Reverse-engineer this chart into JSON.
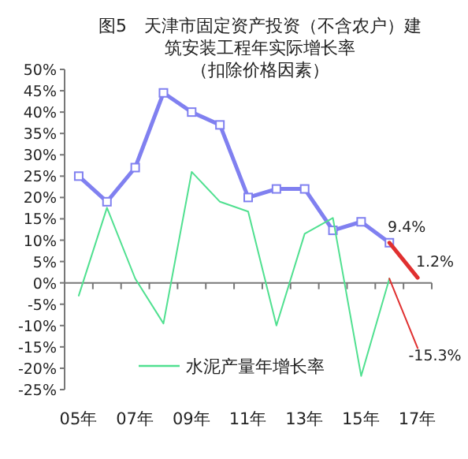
{
  "chart_data": {
    "type": "line",
    "title": "图5　天津市固定资产投资（不含农户）建筑安装工程年实际增长率",
    "subtitle": "（扣除价格因素）",
    "categories": [
      "05年",
      null,
      "07年",
      null,
      "09年",
      null,
      "11年",
      null,
      "13年",
      null,
      "15年",
      null,
      "17年"
    ],
    "ylim": [
      -25,
      50
    ],
    "yticks": [
      {
        "value": -25,
        "label": "-25%"
      },
      {
        "value": -20,
        "label": "-20%"
      },
      {
        "value": -15,
        "label": "-15%"
      },
      {
        "value": -10,
        "label": "-10%"
      },
      {
        "value": -5,
        "label": "-5%"
      },
      {
        "value": 0,
        "label": "0%"
      },
      {
        "value": 5,
        "label": "5%"
      },
      {
        "value": 10,
        "label": "10%"
      },
      {
        "value": 15,
        "label": "15%"
      },
      {
        "value": 20,
        "label": "20%"
      },
      {
        "value": 25,
        "label": "25%"
      },
      {
        "value": 30,
        "label": "30%"
      },
      {
        "value": 35,
        "label": "35%"
      },
      {
        "value": 40,
        "label": "40%"
      },
      {
        "value": 45,
        "label": "45%"
      },
      {
        "value": 50,
        "label": "50%"
      }
    ],
    "legend": "bottom",
    "series": [
      {
        "color": "#8080f0",
        "marker": "square",
        "values": [
          25,
          19,
          27,
          44.5,
          40,
          37,
          20,
          22,
          22,
          12.3,
          14.3,
          9.4,
          null
        ]
      },
      {
        "name": "水泥产量年增长率",
        "color": "#50e090",
        "marker": "none",
        "values": [
          -3,
          17.6,
          1,
          -9.5,
          26,
          19,
          16.7,
          -10,
          11.5,
          15.2,
          -21.8,
          1,
          null
        ]
      },
      {
        "color": "#e03030",
        "marker": "none",
        "values": [
          null,
          null,
          null,
          null,
          null,
          null,
          null,
          null,
          null,
          null,
          null,
          9.4,
          1.2
        ],
        "value_labels": [
          null,
          null,
          null,
          null,
          null,
          null,
          null,
          null,
          null,
          null,
          null,
          "9.4%",
          "1.2%"
        ]
      },
      {
        "color": "#e03030",
        "marker": "none",
        "values": [
          null,
          null,
          null,
          null,
          null,
          null,
          null,
          null,
          null,
          null,
          null,
          1,
          -15.3
        ],
        "value_labels": [
          null,
          null,
          null,
          null,
          null,
          null,
          null,
          null,
          null,
          null,
          null,
          null,
          "-15.3%"
        ]
      }
    ]
  }
}
